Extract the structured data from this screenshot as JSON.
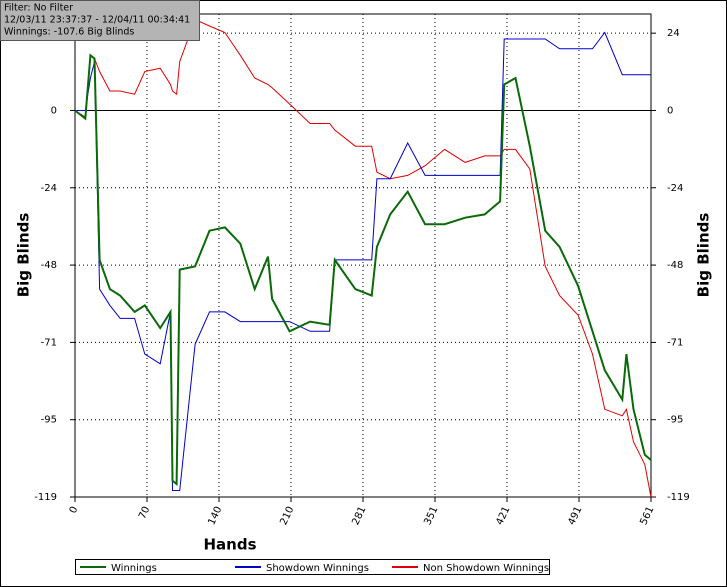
{
  "chart_data": {
    "type": "line",
    "info": [
      "Filter: No Filter",
      "12/03/11 23:37:37 - 12/04/11 00:34:41",
      "Winnings: -107.6 Big Blinds"
    ],
    "x_label": "Hands",
    "y_label": "Big Blinds",
    "y2_label": "Big Blinds",
    "xlim": [
      0,
      561
    ],
    "xticks": [
      0,
      {
        "value": 70.125,
        "label": "70"
      },
      {
        "value": 140.25,
        "label": "140"
      },
      {
        "value": 210.375,
        "label": "210"
      },
      {
        "value": 280.5,
        "label": "281"
      },
      {
        "value": 350.625,
        "label": "351"
      },
      {
        "value": 420.75,
        "label": "421"
      },
      {
        "value": 490.875,
        "label": "491"
      },
      561
    ],
    "ylim": [
      -119,
      29.7
    ],
    "yticks": [
      {
        "value": 23.8,
        "label": "24"
      },
      0,
      {
        "value": -23.8,
        "label": "-24"
      },
      {
        "value": -47.6,
        "label": "-48"
      },
      {
        "value": -71.4,
        "label": "-71"
      },
      {
        "value": -95.2,
        "label": "-95"
      },
      -119
    ],
    "grid": true,
    "legend": "bottom",
    "x": [
      0,
      10,
      15,
      19,
      24,
      34,
      44,
      58,
      68,
      83,
      93,
      95,
      99,
      102,
      117,
      131,
      146,
      161,
      175,
      188,
      192,
      209,
      229,
      248,
      253,
      273,
      289,
      294,
      307,
      324,
      341,
      360,
      380,
      399,
      414,
      418,
      429,
      443,
      458,
      472,
      490,
      504,
      516,
      533,
      537,
      544,
      555,
      561
    ],
    "series": [
      {
        "name": "Winnings",
        "color": "#0a6a0a",
        "width": 2,
        "values": [
          0,
          -2.5,
          17,
          16,
          -46,
          -55,
          -57,
          -62,
          -60,
          -67,
          -62,
          -114,
          -115,
          -49,
          -48,
          -37,
          -36,
          -41,
          -55,
          -45,
          -58,
          -68,
          -65,
          -66,
          -46,
          -55,
          -57,
          -42,
          -32,
          -25,
          -35,
          -35,
          -33,
          -32,
          -28,
          8,
          10,
          -11,
          -37,
          -42,
          -54,
          -68,
          -80,
          -89,
          -75,
          -92,
          -106,
          -107.6
        ]
      },
      {
        "name": "Showdown Winnings",
        "color": "#0000cc",
        "width": 1,
        "values": [
          0,
          0,
          10,
          15,
          -55,
          -60,
          -64,
          -64,
          -75,
          -78,
          -62,
          -117,
          -117,
          -117,
          -72,
          -62,
          -62,
          -65,
          -65,
          -65,
          -65,
          -65,
          -68,
          -68,
          -46,
          -46,
          -46,
          -21,
          -21,
          -10,
          -20,
          -20,
          -20,
          -20,
          -20,
          22,
          22,
          22,
          22,
          19,
          19,
          19,
          24,
          11,
          11,
          11,
          11,
          11
        ]
      },
      {
        "name": "Non Showdown Winnings",
        "color": "#e00000",
        "width": 1,
        "values": [
          0,
          -2,
          17,
          16,
          12,
          6,
          6,
          5,
          12,
          13,
          8,
          6,
          5,
          15,
          28,
          26,
          24,
          17,
          10,
          8,
          7,
          2,
          -4,
          -4,
          -6,
          -11,
          -11,
          -19,
          -21,
          -20,
          -17,
          -12,
          -16,
          -14,
          -14,
          -12,
          -12,
          -18,
          -48,
          -57,
          -63,
          -75,
          -92,
          -94,
          -92,
          -102,
          -109,
          -119
        ]
      }
    ]
  }
}
